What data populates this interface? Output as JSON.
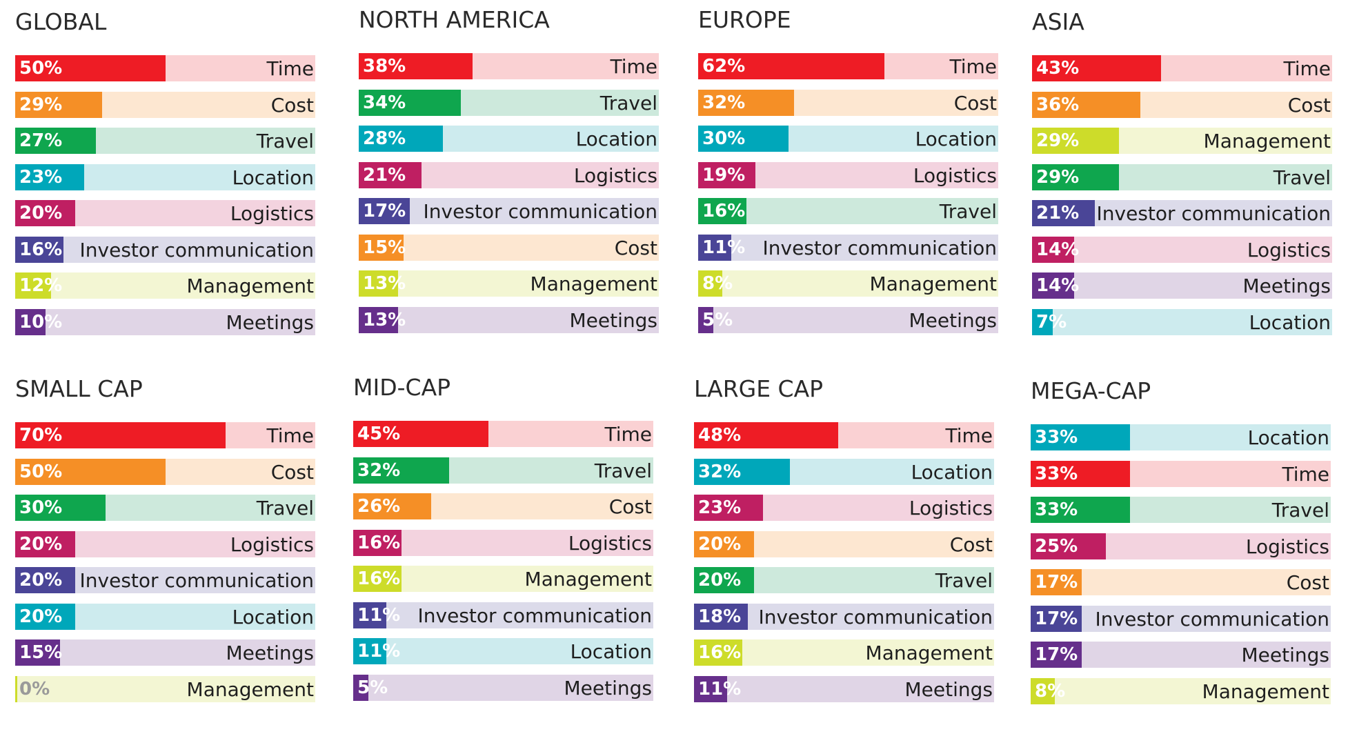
{
  "colors": {
    "Time": {
      "fill": "#ee1c25",
      "bg": "#fad1d3"
    },
    "Cost": {
      "fill": "#f58f26",
      "bg": "#fde7d1"
    },
    "Travel": {
      "fill": "#0fa64e",
      "bg": "#cde9dc"
    },
    "Location": {
      "fill": "#00a7ba",
      "bg": "#cdebee"
    },
    "Logistics": {
      "fill": "#bf1f62",
      "bg": "#f3d3df"
    },
    "Investor communication": {
      "fill": "#4a4597",
      "bg": "#dcdbea"
    },
    "Management": {
      "fill": "#cddc2a",
      "bg": "#f3f6d3"
    },
    "Meetings": {
      "fill": "#662f8b",
      "bg": "#e0d5e6"
    }
  },
  "chart_data": [
    {
      "type": "bar",
      "title": "GLOBAL",
      "orientation": "horizontal",
      "xlim": [
        0,
        100
      ],
      "categories": [
        "Time",
        "Cost",
        "Travel",
        "Location",
        "Logistics",
        "Investor communication",
        "Management",
        "Meetings"
      ],
      "values": [
        50,
        29,
        27,
        23,
        20,
        16,
        12,
        10
      ],
      "value_labels": [
        "50%",
        "29%",
        "27%",
        "23%",
        "20%",
        "16%",
        "12%",
        "10%"
      ]
    },
    {
      "type": "bar",
      "title": "NORTH AMERICA",
      "orientation": "horizontal",
      "xlim": [
        0,
        100
      ],
      "categories": [
        "Time",
        "Travel",
        "Location",
        "Logistics",
        "Investor communication",
        "Cost",
        "Management",
        "Meetings"
      ],
      "values": [
        38,
        34,
        28,
        21,
        17,
        15,
        13,
        13
      ],
      "value_labels": [
        "38%",
        "34%",
        "28%",
        "21%",
        "17%",
        "15%",
        "13%",
        "13%"
      ]
    },
    {
      "type": "bar",
      "title": "EUROPE",
      "orientation": "horizontal",
      "xlim": [
        0,
        100
      ],
      "categories": [
        "Time",
        "Cost",
        "Location",
        "Logistics",
        "Travel",
        "Investor communication",
        "Management",
        "Meetings"
      ],
      "values": [
        62,
        32,
        30,
        19,
        16,
        11,
        8,
        5
      ],
      "value_labels": [
        "62%",
        "32%",
        "30%",
        "19%",
        "16%",
        "11%",
        "8%",
        "5%"
      ]
    },
    {
      "type": "bar",
      "title": "ASIA",
      "orientation": "horizontal",
      "xlim": [
        0,
        100
      ],
      "categories": [
        "Time",
        "Cost",
        "Management",
        "Travel",
        "Investor communication",
        "Logistics",
        "Meetings",
        "Location"
      ],
      "values": [
        43,
        36,
        29,
        29,
        21,
        14,
        14,
        7
      ],
      "value_labels": [
        "43%",
        "36%",
        "29%",
        "29%",
        "21%",
        "14%",
        "14%",
        "7%"
      ]
    },
    {
      "type": "bar",
      "title": "SMALL CAP",
      "orientation": "horizontal",
      "xlim": [
        0,
        100
      ],
      "categories": [
        "Time",
        "Cost",
        "Travel",
        "Logistics",
        "Investor communication",
        "Location",
        "Meetings",
        "Management"
      ],
      "values": [
        70,
        50,
        30,
        20,
        20,
        20,
        15,
        0
      ],
      "value_labels": [
        "70%",
        "50%",
        "30%",
        "20%",
        "20%",
        "20%",
        "15%",
        "0%"
      ]
    },
    {
      "type": "bar",
      "title": "MID-CAP",
      "orientation": "horizontal",
      "xlim": [
        0,
        100
      ],
      "categories": [
        "Time",
        "Travel",
        "Cost",
        "Logistics",
        "Management",
        "Investor communication",
        "Location",
        "Meetings"
      ],
      "values": [
        45,
        32,
        26,
        16,
        16,
        11,
        11,
        5
      ],
      "value_labels": [
        "45%",
        "32%",
        "26%",
        "16%",
        "16%",
        "11%",
        "11%",
        "5%"
      ]
    },
    {
      "type": "bar",
      "title": "LARGE CAP",
      "orientation": "horizontal",
      "xlim": [
        0,
        100
      ],
      "categories": [
        "Time",
        "Location",
        "Logistics",
        "Cost",
        "Travel",
        "Investor communication",
        "Management",
        "Meetings"
      ],
      "values": [
        48,
        32,
        23,
        20,
        20,
        18,
        16,
        11
      ],
      "value_labels": [
        "48%",
        "32%",
        "23%",
        "20%",
        "20%",
        "18%",
        "16%",
        "11%"
      ]
    },
    {
      "type": "bar",
      "title": "MEGA-CAP",
      "orientation": "horizontal",
      "xlim": [
        0,
        100
      ],
      "categories": [
        "Location",
        "Time",
        "Travel",
        "Logistics",
        "Cost",
        "Investor communication",
        "Meetings",
        "Management"
      ],
      "values": [
        33,
        33,
        33,
        25,
        17,
        17,
        17,
        8
      ],
      "value_labels": [
        "33%",
        "33%",
        "33%",
        "25%",
        "17%",
        "17%",
        "17%",
        "8%"
      ]
    }
  ]
}
